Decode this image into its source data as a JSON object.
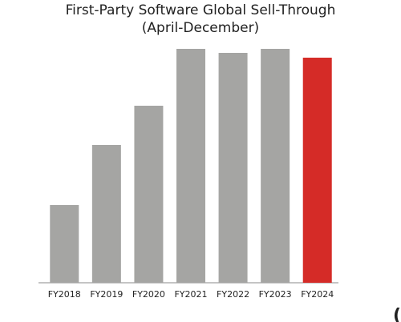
{
  "chart_data": {
    "type": "bar",
    "title": "First-Party Software Global Sell-Through",
    "subtitle": "(April-December)",
    "categories": [
      "FY2018",
      "FY2019",
      "FY2020",
      "FY2021",
      "FY2022",
      "FY2023",
      "FY2024"
    ],
    "values": [
      97,
      172,
      221,
      292,
      287,
      292,
      281
    ],
    "colors": [
      "#a5a5a3",
      "#a5a5a3",
      "#a5a5a3",
      "#a5a5a3",
      "#a5a5a3",
      "#a5a5a3",
      "#d52b27"
    ],
    "ylim": [
      0,
      300
    ],
    "annotation": "("
  }
}
